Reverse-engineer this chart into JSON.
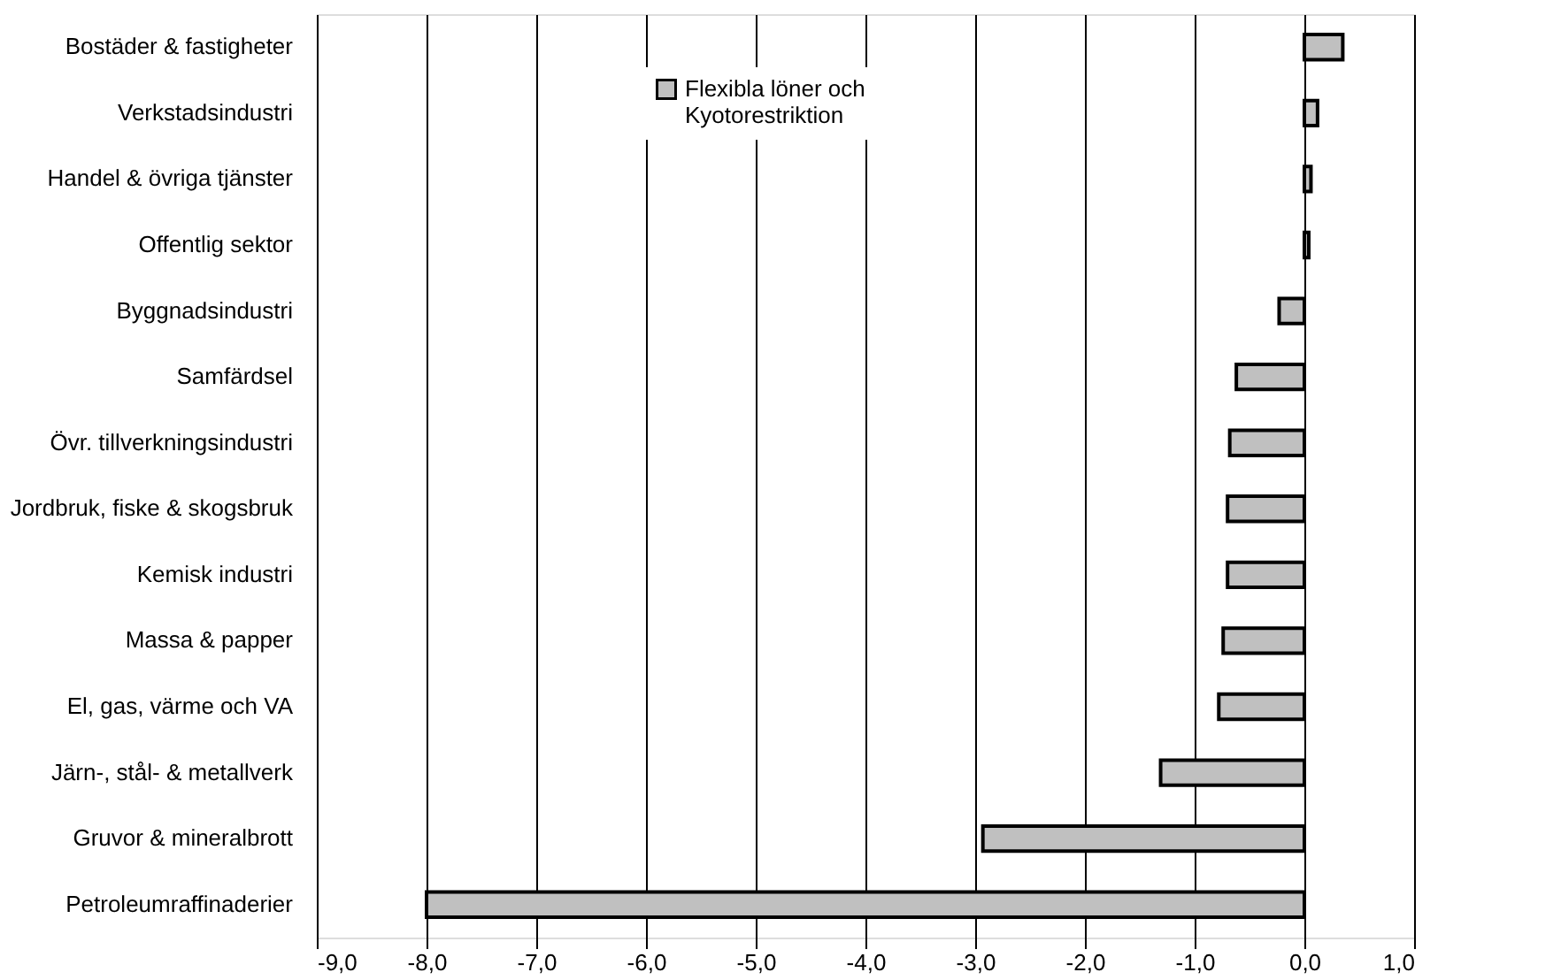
{
  "chart_data": {
    "type": "bar",
    "orientation": "horizontal",
    "categories": [
      "Bostäder & fastigheter",
      "Verkstadsindustri",
      "Handel & övriga tjänster",
      "Offentlig sektor",
      "Byggnadsindustri",
      "Samfärdsel",
      "Övr. tillverkningsindustri",
      "Jordbruk, fiske & skogsbruk",
      "Kemisk industri",
      "Massa & papper",
      "El, gas, värme och VA",
      "Järn-, stål- & metallverk",
      "Gruvor & mineralbrott",
      "Petroleumraffinaderier"
    ],
    "series": [
      {
        "name": "Flexibla löner och Kyotorestriktion",
        "color": "#c0c0c0",
        "values": [
          0.35,
          0.12,
          0.06,
          0.04,
          -0.23,
          -0.62,
          -0.68,
          -0.7,
          -0.7,
          -0.74,
          -0.78,
          -1.31,
          -2.93,
          -8.0
        ]
      }
    ],
    "xlim": [
      -9,
      1
    ],
    "xticks": [
      {
        "value": -9,
        "label": "-9,0"
      },
      {
        "value": -8,
        "label": "-8,0"
      },
      {
        "value": -7,
        "label": "-7,0"
      },
      {
        "value": -6,
        "label": "-6,0"
      },
      {
        "value": -5,
        "label": "-5,0"
      },
      {
        "value": -4,
        "label": "-4,0"
      },
      {
        "value": -3,
        "label": "-3,0"
      },
      {
        "value": -2,
        "label": "-2,0"
      },
      {
        "value": -1,
        "label": "-1,0"
      },
      {
        "value": 0,
        "label": "0,0"
      },
      {
        "value": 1,
        "label": "1,0"
      }
    ],
    "grid": "x",
    "legend": "top"
  }
}
